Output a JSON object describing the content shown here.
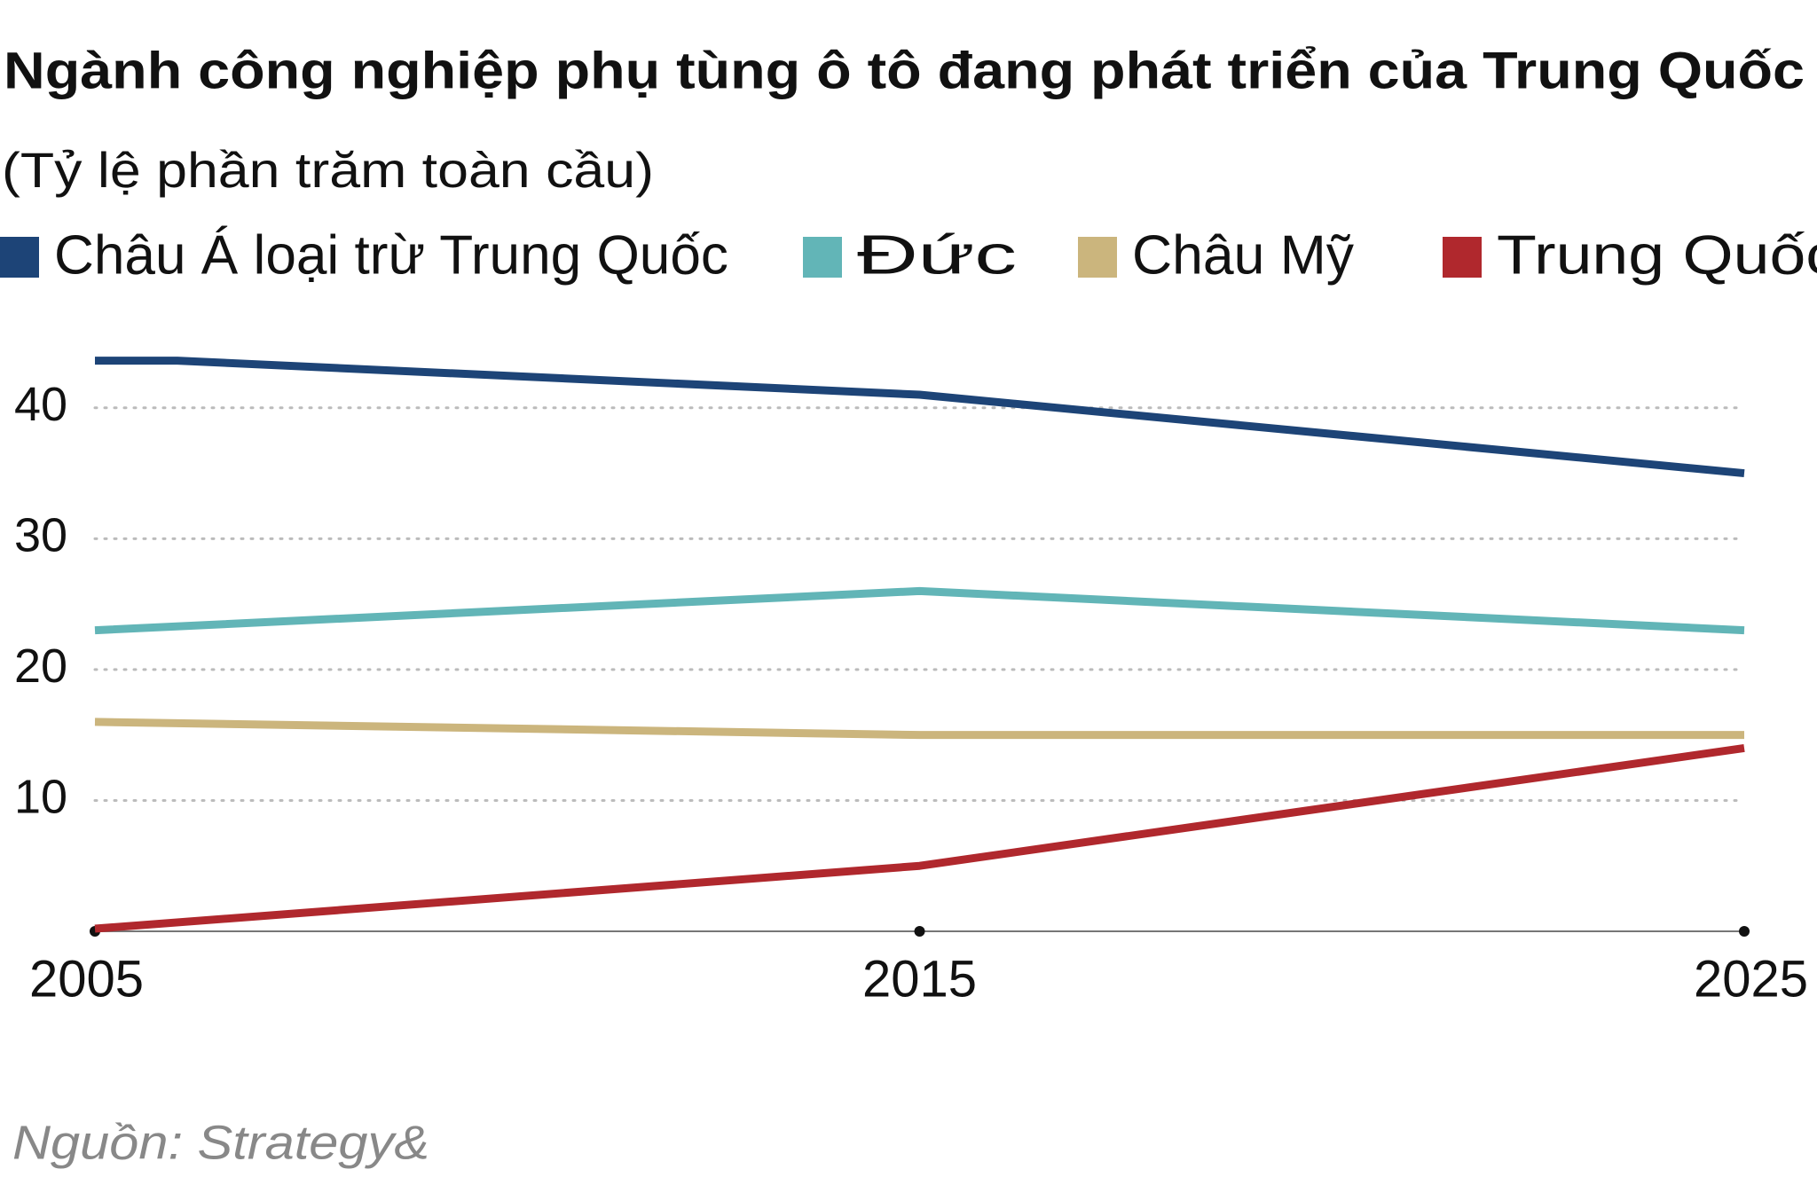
{
  "chart_data": {
    "type": "line",
    "title": "Ngành công nghiệp phụ tùng ô tô đang phát triển của Trung Quốc",
    "subtitle": "(Tỷ lệ phần trăm toàn cầu)",
    "series": [
      {
        "name": "Châu Á loại trừ Trung Quốc",
        "color": "#1d4477",
        "x": [
          2005,
          2006,
          2015,
          2025
        ],
        "values": [
          43.6,
          43.6,
          41,
          35
        ]
      },
      {
        "name": "Đức",
        "color": "#62b5b7",
        "x": [
          2005,
          2015,
          2025
        ],
        "values": [
          23,
          26,
          23
        ]
      },
      {
        "name": "Châu Mỹ",
        "color": "#cbb57d",
        "x": [
          2005,
          2015,
          2025
        ],
        "values": [
          16,
          15,
          15
        ]
      },
      {
        "name": "Trung Quốc",
        "color": "#b0282d",
        "x": [
          2005,
          2015,
          2025
        ],
        "values": [
          0.2,
          5,
          14
        ]
      }
    ],
    "xlim": [
      2005,
      2025
    ],
    "xticks": [
      2005,
      2015,
      2025
    ],
    "ylim": [
      0,
      45
    ],
    "yticks": [
      10,
      20,
      30,
      40
    ],
    "grid": true,
    "source": "Nguồn: Strategy&"
  }
}
